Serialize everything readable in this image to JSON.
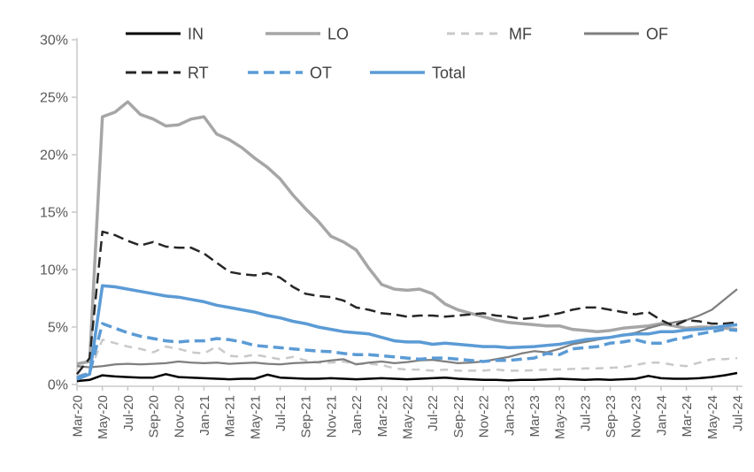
{
  "chart_data": {
    "type": "line",
    "title": "",
    "xlabel": "",
    "ylabel": "",
    "x_frequency": "monthly",
    "x_start": "Mar-20",
    "x_end": "Jul-24",
    "point_count": 53,
    "grid": false,
    "legend_position": "top",
    "ylim": [
      0,
      30
    ],
    "y_axis": {
      "tick_labels": [
        "0%",
        "5%",
        "10%",
        "15%",
        "20%",
        "25%",
        "30%"
      ],
      "min": 0,
      "max": 30,
      "step": 5
    },
    "x_axis": {
      "tick_labels": [
        "Mar-20",
        "May-20",
        "Jul-20",
        "Sep-20",
        "Nov-20",
        "Jan-21",
        "Mar-21",
        "May-21",
        "Jul-21",
        "Sep-21",
        "Nov-21",
        "Jan-22",
        "Mar-22",
        "May-22",
        "Jul-22",
        "Sep-22",
        "Nov-22",
        "Jan-23",
        "Mar-23",
        "May-23",
        "Jul-23",
        "Sep-23",
        "Nov-23",
        "Jan-24",
        "Mar-24",
        "May-24",
        "Jul-24"
      ],
      "tick_every_n_points": 2,
      "label_rotation_deg": -90
    },
    "colors": {
      "black": "#000000",
      "dark_gray_dash": "#262626",
      "medium_gray": "#A6A6A6",
      "dark_gray": "#7F7F7F",
      "light_gray": "#C9C9C9",
      "blue": "#5B9BD5",
      "axis_line": "#C8C8C8",
      "axis_text": "#595959",
      "legend_text": "#404040"
    },
    "series": [
      {
        "name": "IN",
        "color": "#000000",
        "style": "solid",
        "width": 2.5,
        "values": [
          0.3,
          0.4,
          0.8,
          0.7,
          0.65,
          0.6,
          0.6,
          0.9,
          0.65,
          0.6,
          0.55,
          0.5,
          0.45,
          0.5,
          0.5,
          0.85,
          0.6,
          0.55,
          0.5,
          0.5,
          0.55,
          0.5,
          0.45,
          0.5,
          0.55,
          0.5,
          0.45,
          0.5,
          0.55,
          0.6,
          0.5,
          0.45,
          0.4,
          0.4,
          0.35,
          0.4,
          0.4,
          0.45,
          0.5,
          0.45,
          0.4,
          0.45,
          0.4,
          0.45,
          0.5,
          0.75,
          0.55,
          0.5,
          0.5,
          0.55,
          0.65,
          0.8,
          1.0
        ]
      },
      {
        "name": "LO",
        "color": "#A6A6A6",
        "style": "solid",
        "width": 3.5,
        "values": [
          1.8,
          2.0,
          23.3,
          23.7,
          24.6,
          23.5,
          23.1,
          22.5,
          22.6,
          23.1,
          23.3,
          21.8,
          21.3,
          20.6,
          19.7,
          18.9,
          17.9,
          16.5,
          15.3,
          14.2,
          12.9,
          12.4,
          11.7,
          10.1,
          8.7,
          8.3,
          8.2,
          8.3,
          7.9,
          7.0,
          6.5,
          6.2,
          5.9,
          5.6,
          5.4,
          5.3,
          5.2,
          5.1,
          5.1,
          4.8,
          4.7,
          4.6,
          4.7,
          4.9,
          5.0,
          5.1,
          5.3,
          5.1,
          4.9,
          5.0,
          5.0,
          4.9,
          4.8
        ]
      },
      {
        "name": "MF",
        "color": "#C9C9C9",
        "style": "dashed",
        "width": 2.5,
        "values": [
          0.7,
          1.1,
          3.9,
          3.6,
          3.3,
          3.1,
          2.8,
          3.3,
          3.1,
          2.8,
          2.7,
          3.3,
          2.5,
          2.4,
          2.6,
          2.4,
          2.2,
          2.4,
          2.1,
          1.9,
          1.9,
          2.0,
          1.8,
          1.8,
          1.7,
          1.4,
          1.3,
          1.3,
          1.2,
          1.3,
          1.2,
          1.2,
          1.2,
          1.3,
          1.2,
          1.2,
          1.25,
          1.3,
          1.3,
          1.35,
          1.4,
          1.4,
          1.45,
          1.5,
          1.7,
          1.9,
          1.9,
          1.7,
          1.6,
          1.9,
          2.2,
          2.2,
          2.3
        ]
      },
      {
        "name": "OF",
        "color": "#7F7F7F",
        "style": "solid",
        "width": 2.25,
        "values": [
          1.6,
          1.5,
          1.6,
          1.75,
          1.8,
          1.75,
          1.8,
          1.85,
          2.0,
          1.9,
          1.85,
          1.9,
          1.8,
          1.85,
          1.9,
          1.8,
          1.75,
          1.85,
          1.9,
          1.95,
          2.1,
          2.2,
          1.75,
          1.9,
          2.0,
          1.85,
          1.95,
          2.1,
          2.15,
          2.0,
          1.85,
          1.9,
          2.0,
          2.2,
          2.4,
          2.7,
          2.9,
          2.8,
          3.1,
          3.5,
          3.7,
          3.9,
          4.1,
          4.3,
          4.5,
          4.9,
          5.2,
          5.4,
          5.6,
          6.0,
          6.5,
          7.4,
          8.3
        ]
      },
      {
        "name": "RT",
        "color": "#262626",
        "style": "dashed",
        "width": 2.5,
        "values": [
          0.9,
          2.3,
          13.3,
          13.0,
          12.5,
          12.1,
          12.4,
          12.0,
          11.9,
          11.9,
          11.4,
          10.6,
          9.8,
          9.6,
          9.5,
          9.7,
          9.3,
          8.5,
          7.9,
          7.7,
          7.6,
          7.3,
          6.7,
          6.5,
          6.2,
          6.1,
          5.9,
          6.0,
          6.0,
          5.9,
          6.0,
          6.1,
          6.2,
          6.0,
          5.9,
          5.7,
          5.8,
          6.0,
          6.2,
          6.5,
          6.7,
          6.7,
          6.5,
          6.3,
          6.1,
          6.3,
          5.6,
          5.1,
          5.6,
          5.5,
          5.3,
          5.3,
          5.4
        ]
      },
      {
        "name": "OT",
        "color": "#5B9BD5",
        "style": "dashed",
        "width": 3.5,
        "values": [
          0.6,
          1.0,
          5.3,
          4.9,
          4.5,
          4.2,
          4.0,
          3.8,
          3.7,
          3.8,
          3.8,
          4.0,
          3.9,
          3.7,
          3.4,
          3.3,
          3.2,
          3.1,
          3.0,
          2.9,
          2.85,
          2.7,
          2.6,
          2.6,
          2.5,
          2.4,
          2.3,
          2.2,
          2.3,
          2.3,
          2.2,
          2.1,
          2.0,
          2.1,
          2.1,
          2.2,
          2.3,
          2.7,
          2.6,
          3.1,
          3.2,
          3.3,
          3.6,
          3.7,
          3.9,
          3.6,
          3.6,
          3.9,
          4.1,
          4.4,
          4.6,
          4.8,
          4.7
        ]
      },
      {
        "name": "Total",
        "color": "#5B9BD5",
        "style": "solid",
        "width": 3.5,
        "values": [
          0.45,
          0.9,
          8.6,
          8.5,
          8.3,
          8.1,
          7.9,
          7.7,
          7.6,
          7.4,
          7.2,
          6.9,
          6.7,
          6.5,
          6.3,
          6.0,
          5.8,
          5.5,
          5.3,
          5.0,
          4.8,
          4.6,
          4.5,
          4.4,
          4.1,
          3.8,
          3.7,
          3.7,
          3.5,
          3.6,
          3.5,
          3.4,
          3.3,
          3.3,
          3.2,
          3.25,
          3.3,
          3.4,
          3.5,
          3.7,
          3.9,
          4.0,
          4.1,
          4.3,
          4.4,
          4.4,
          4.6,
          4.6,
          4.75,
          4.8,
          4.9,
          5.1,
          5.2
        ]
      }
    ],
    "legend": {
      "rows": [
        [
          {
            "series": 0,
            "label": "IN"
          },
          {
            "series": 1,
            "label": "LO"
          },
          {
            "series": 2,
            "label": "MF"
          },
          {
            "series": 3,
            "label": "OF"
          }
        ],
        [
          {
            "series": 4,
            "label": "RT"
          },
          {
            "series": 5,
            "label": "OT"
          },
          {
            "series": 6,
            "label": "Total"
          }
        ]
      ]
    }
  }
}
